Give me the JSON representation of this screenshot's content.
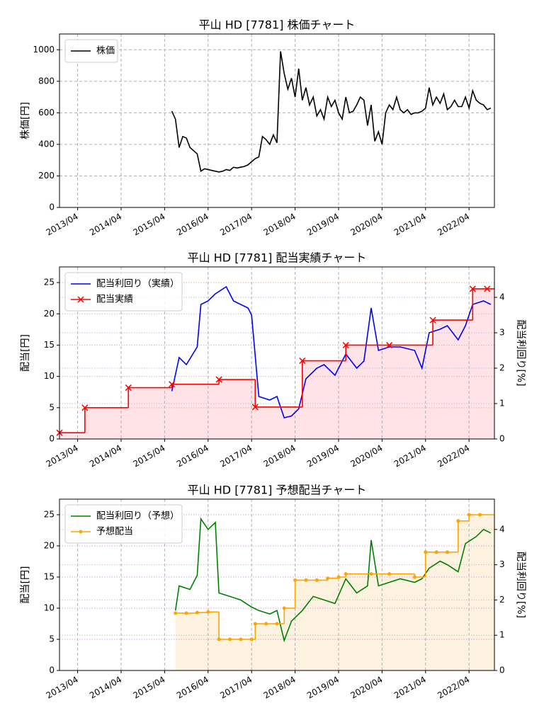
{
  "chart_data": [
    {
      "type": "line",
      "title": "平山 HD [7781]  株価チャート",
      "ylabel": "株価[円]",
      "xlim": [
        "2012/11",
        "2022/11"
      ],
      "xticks": [
        "2013/04",
        "2014/04",
        "2015/04",
        "2016/04",
        "2017/04",
        "2018/04",
        "2019/04",
        "2020/04",
        "2021/04",
        "2022/04"
      ],
      "ylim": [
        0,
        1100
      ],
      "yticks": [
        0,
        200,
        400,
        600,
        800,
        1000
      ],
      "grid": true,
      "legend": "upper left",
      "series": [
        {
          "name": "株価",
          "color": "#000000",
          "x": [
            "2015/06",
            "2015/07",
            "2015/08",
            "2015/09",
            "2015/10",
            "2015/11",
            "2015/12",
            "2016/01",
            "2016/02",
            "2016/03",
            "2016/04",
            "2016/05",
            "2016/06",
            "2016/07",
            "2016/08",
            "2016/09",
            "2016/10",
            "2016/11",
            "2016/12",
            "2017/01",
            "2017/02",
            "2017/03",
            "2017/04",
            "2017/05",
            "2017/06",
            "2017/07",
            "2017/08",
            "2017/09",
            "2017/10",
            "2017/11",
            "2017/12",
            "2018/01",
            "2018/02",
            "2018/03",
            "2018/04",
            "2018/05",
            "2018/06",
            "2018/07",
            "2018/08",
            "2018/09",
            "2018/10",
            "2018/11",
            "2018/12",
            "2019/01",
            "2019/02",
            "2019/03",
            "2019/04",
            "2019/05",
            "2019/06",
            "2019/07",
            "2019/08",
            "2019/09",
            "2019/10",
            "2019/11",
            "2019/12",
            "2020/01",
            "2020/02",
            "2020/03",
            "2020/04",
            "2020/05",
            "2020/06",
            "2020/07",
            "2020/08",
            "2020/09",
            "2020/10",
            "2020/11",
            "2020/12",
            "2021/01",
            "2021/02",
            "2021/03",
            "2021/04",
            "2021/05",
            "2021/06",
            "2021/07",
            "2021/08",
            "2021/09",
            "2021/10",
            "2021/11",
            "2021/12",
            "2022/01",
            "2022/02",
            "2022/03",
            "2022/04",
            "2022/05",
            "2022/06",
            "2022/07",
            "2022/08",
            "2022/09",
            "2022/10"
          ],
          "values": [
            610,
            560,
            380,
            450,
            440,
            380,
            360,
            340,
            230,
            245,
            240,
            235,
            230,
            225,
            230,
            240,
            235,
            255,
            250,
            255,
            260,
            270,
            290,
            310,
            320,
            450,
            430,
            400,
            460,
            410,
            990,
            850,
            750,
            820,
            700,
            880,
            680,
            760,
            650,
            700,
            580,
            620,
            560,
            700,
            640,
            680,
            600,
            560,
            700,
            600,
            610,
            650,
            700,
            680,
            520,
            650,
            420,
            480,
            400,
            600,
            650,
            620,
            700,
            620,
            600,
            620,
            590,
            600,
            600,
            610,
            630,
            760,
            650,
            700,
            660,
            720,
            620,
            640,
            680,
            640,
            640,
            700,
            630,
            740,
            680,
            660,
            650,
            620,
            630
          ]
        }
      ]
    },
    {
      "type": "line",
      "title": "平山 HD [7781]  配当実績チャート",
      "ylabel": "配当[円]",
      "y2label": "配当利回り[%]",
      "xlim": [
        "2012/11",
        "2022/11"
      ],
      "xticks": [
        "2013/04",
        "2014/04",
        "2015/04",
        "2016/04",
        "2017/04",
        "2018/04",
        "2019/04",
        "2020/04",
        "2021/04",
        "2022/04"
      ],
      "ylim": [
        0,
        27.5
      ],
      "yticks": [
        0,
        5,
        10,
        15,
        20,
        25
      ],
      "y2lim": [
        0,
        4.86
      ],
      "y2ticks": [
        0,
        1,
        2,
        3,
        4
      ],
      "grid": true,
      "grid_colors": {
        "y": "#f4b183",
        "y2": "#a9c8f0"
      },
      "legend": "upper left",
      "series": [
        {
          "name": "配当利回り（実績）",
          "color": "#0000ff",
          "axis": "y2",
          "x": [
            "2015/06",
            "2015/08",
            "2015/10",
            "2016/01",
            "2016/02",
            "2016/04",
            "2016/06",
            "2016/09",
            "2016/11",
            "2017/01",
            "2017/03",
            "2017/04",
            "2017/06",
            "2017/09",
            "2017/11",
            "2018/01",
            "2018/03",
            "2018/05",
            "2018/07",
            "2018/10",
            "2018/12",
            "2019/03",
            "2019/06",
            "2019/09",
            "2019/11",
            "2020/01",
            "2020/03",
            "2020/06",
            "2020/09",
            "2021/01",
            "2021/03",
            "2021/05",
            "2021/08",
            "2021/10",
            "2022/01",
            "2022/03",
            "2022/05",
            "2022/08",
            "2022/10"
          ],
          "values": [
            1.35,
            2.3,
            2.1,
            2.6,
            3.8,
            3.9,
            4.1,
            4.3,
            3.9,
            3.8,
            3.7,
            3.5,
            1.2,
            1.1,
            1.2,
            0.6,
            0.65,
            0.85,
            1.7,
            2.0,
            2.1,
            1.8,
            2.4,
            2.0,
            2.2,
            3.7,
            2.5,
            2.6,
            2.6,
            2.5,
            2.0,
            3.0,
            3.1,
            3.2,
            2.8,
            3.2,
            3.8,
            3.9,
            3.8
          ]
        },
        {
          "name": "配当実績",
          "color": "#ff0000",
          "style": "step",
          "marker": "x",
          "fill": "#ffe3e7",
          "x": [
            "2012/11",
            "2013/06",
            "2014/06",
            "2015/06",
            "2016/07",
            "2017/05",
            "2018/06",
            "2019/06",
            "2020/06",
            "2021/06",
            "2022/05",
            "2022/09"
          ],
          "values": [
            1,
            5,
            8.2,
            8.75,
            9.5,
            5.1,
            12.5,
            15,
            15,
            19,
            24,
            24
          ]
        }
      ]
    },
    {
      "type": "line",
      "title": "平山 HD [7781]  予想配当チャート",
      "ylabel": "配当[円]",
      "y2label": "配当利回り[%]",
      "xlim": [
        "2012/11",
        "2022/11"
      ],
      "xticks": [
        "2013/04",
        "2014/04",
        "2015/04",
        "2016/04",
        "2017/04",
        "2018/04",
        "2019/04",
        "2020/04",
        "2021/04",
        "2022/04"
      ],
      "ylim": [
        0,
        27.5
      ],
      "yticks": [
        0,
        5,
        10,
        15,
        20,
        25
      ],
      "y2lim": [
        0,
        4.86
      ],
      "y2ticks": [
        0,
        1,
        2,
        3,
        4
      ],
      "grid": true,
      "grid_colors": {
        "y": "#d9a0e6",
        "y2": "#a8e0a8"
      },
      "legend": "upper left",
      "series": [
        {
          "name": "配当利回り（予想）",
          "color": "#008000",
          "axis": "y2",
          "x": [
            "2015/07",
            "2015/08",
            "2015/11",
            "2016/01",
            "2016/02",
            "2016/04",
            "2016/06",
            "2016/07",
            "2016/10",
            "2017/01",
            "2017/04",
            "2017/06",
            "2017/09",
            "2017/11",
            "2018/01",
            "2018/03",
            "2018/06",
            "2018/09",
            "2018/12",
            "2019/03",
            "2019/06",
            "2019/09",
            "2019/12",
            "2020/01",
            "2020/03",
            "2020/06",
            "2020/09",
            "2021/01",
            "2021/03",
            "2021/05",
            "2021/08",
            "2021/10",
            "2022/01",
            "2022/03",
            "2022/06",
            "2022/08",
            "2022/10"
          ],
          "values": [
            1.7,
            2.4,
            2.3,
            2.7,
            4.3,
            4.0,
            4.2,
            2.2,
            2.1,
            2.0,
            1.8,
            1.7,
            1.6,
            1.7,
            0.85,
            1.4,
            1.7,
            2.1,
            2.0,
            1.9,
            2.6,
            2.2,
            2.4,
            3.7,
            2.4,
            2.5,
            2.6,
            2.5,
            2.6,
            2.9,
            3.1,
            3.0,
            2.8,
            3.6,
            3.8,
            4.0,
            3.9
          ]
        },
        {
          "name": "予想配当",
          "color": "#ffa500",
          "style": "step",
          "marker": "o",
          "fill": "#fdf1df",
          "x": [
            "2015/07",
            "2015/10",
            "2016/01",
            "2016/04",
            "2016/07",
            "2016/10",
            "2017/01",
            "2017/04",
            "2017/05",
            "2017/08",
            "2017/11",
            "2018/01",
            "2018/04",
            "2018/07",
            "2018/10",
            "2019/01",
            "2019/04",
            "2019/06",
            "2020/01",
            "2020/06",
            "2021/01",
            "2021/04",
            "2021/07",
            "2021/10",
            "2022/01",
            "2022/04",
            "2022/07"
          ],
          "values": [
            9.2,
            9.2,
            9.3,
            9.4,
            5,
            5,
            5,
            5,
            7.5,
            7.5,
            7.5,
            10,
            14.5,
            14.5,
            14.5,
            14.8,
            15,
            15.5,
            15.5,
            15.5,
            15,
            19,
            19,
            19,
            24,
            25,
            25
          ]
        }
      ]
    }
  ]
}
